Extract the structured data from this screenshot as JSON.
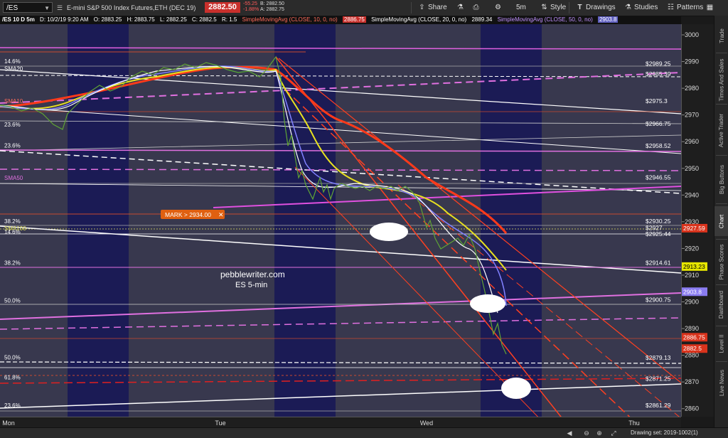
{
  "toolbar": {
    "symbol": "/ES",
    "contract_desc": "E-mini S&P 500 Index Futures,ETH (DEC 19)",
    "price": "2882.50",
    "change": "-55.25",
    "change_pct": "-1.88%",
    "bid": "B: 2882.50",
    "ask": "A: 2882.75",
    "share_label": "Share",
    "interval": "5m",
    "style_label": "Style",
    "drawings_label": "Drawings",
    "studies_label": "Studies",
    "patterns_label": "Patterns"
  },
  "infobar": {
    "header": "/ES 10 D 5m",
    "date": "D: 10/2/19 9:20 AM",
    "open": "O: 2883.25",
    "high": "H: 2883.75",
    "low": "L: 2882.25",
    "close": "C: 2882.5",
    "rel": "R: 1.5",
    "sma10_label": "SimpleMovingAvg (CLOSE, 10, 0, no)",
    "sma10_value": "2886.75",
    "sma20_label": "SimpleMovingAvg (CLOSE, 20, 0, no)",
    "sma20_value": "2889.34",
    "sma50_label": "SimpleMovingAvg (CLOSE, 50, 0, no)",
    "sma50_value": "2903.8"
  },
  "right_panel_tabs": [
    "Trade",
    "Times And Sales",
    "Active Trader",
    "Big Buttons",
    "Chart",
    "Phase Scores",
    "Dashboard",
    "Level II",
    "Live News"
  ],
  "bottombar": {
    "drawing_set": "Drawing set: 2019-1002(1)"
  },
  "chart_data": {
    "type": "line",
    "title": "",
    "ylim": [
      2857,
      3004
    ],
    "y_ticks": [
      2860,
      2870,
      2880,
      2890,
      2900,
      2910,
      2920,
      2930,
      2940,
      2950,
      2960,
      2970,
      2980,
      2990,
      3000
    ],
    "x_ticks": [
      "Mon",
      "Tue",
      "Wed",
      "Thu"
    ],
    "watermark": [
      "pebblewriter.com",
      "ES 5-min"
    ],
    "mark_label": "MARK > 2934.00",
    "level_labels": [
      {
        "text": "$2989.25",
        "y": 2989.25
      },
      {
        "text": "$2985.39",
        "y": 2985.39
      },
      {
        "text": "$2975.3",
        "y": 2975.3
      },
      {
        "text": "$2966.75",
        "y": 2966.75
      },
      {
        "text": "$2958.52",
        "y": 2958.52
      },
      {
        "text": "$2946.55",
        "y": 2946.55
      },
      {
        "text": "$2930.25",
        "y": 2930.25
      },
      {
        "text": "$2927",
        "y": 2927.7
      },
      {
        "text": "$2925.44",
        "y": 2925.44
      },
      {
        "text": "$2914.61",
        "y": 2914.61
      },
      {
        "text": "$2900.75",
        "y": 2900.75
      },
      {
        "text": "$2879.13",
        "y": 2879.13
      },
      {
        "text": "$2871.25",
        "y": 2871.25
      },
      {
        "text": "$2861.29",
        "y": 2861.29
      }
    ],
    "left_labels": [
      {
        "text": "14.6%",
        "y": 2990.2
      },
      {
        "text": "SMA20",
        "y": 2987.3
      },
      {
        "text": "SMA10",
        "y": 2975.3
      },
      {
        "text": "23.6%",
        "y": 2966.5
      },
      {
        "text": "23.6%",
        "y": 2958.6
      },
      {
        "text": "SMA50",
        "y": 2946.5
      },
      {
        "text": "38.2%",
        "y": 2930.3
      },
      {
        "text": "SMA100",
        "y": 2927.6
      },
      {
        "text": "14.6%",
        "y": 2926.2
      },
      {
        "text": "38.2%",
        "y": 2914.7
      },
      {
        "text": "50.0%",
        "y": 2900.6
      },
      {
        "text": "50.0%",
        "y": 2879.3
      },
      {
        "text": "61.8%",
        "y": 2871.8
      },
      {
        "text": "23.6%",
        "y": 2861.3
      }
    ],
    "axis_flags": [
      {
        "text": "2927.59",
        "y": 2927.59,
        "color": "#d9331c"
      },
      {
        "text": "2913.23",
        "y": 2913.23,
        "color": "#e6e600"
      },
      {
        "text": "2903.8",
        "y": 2903.8,
        "color": "#8a7cf0"
      },
      {
        "text": "2886.75",
        "y": 2886.75,
        "color": "#d9331c"
      },
      {
        "text": "2882.5",
        "y": 2882.5,
        "color": "#d9331c"
      }
    ],
    "series": [
      {
        "name": "SimpleMovingAvg (CLOSE, 10, 0, no)",
        "color": "#ff6b5a"
      },
      {
        "name": "SimpleMovingAvg (CLOSE, 20, 0, no)",
        "color": "#ffffff"
      },
      {
        "name": "SimpleMovingAvg (CLOSE, 50, 0, no)",
        "color": "#c090ff"
      }
    ]
  }
}
